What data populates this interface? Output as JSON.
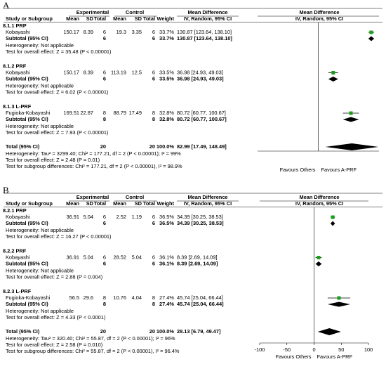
{
  "panels": [
    {
      "label": "A",
      "groups": [
        "Experimental",
        "Control",
        "Mean Difference",
        "Mean Difference"
      ],
      "columns": [
        "Study or Subgroup",
        "Mean",
        "SD",
        "Total",
        "Mean",
        "SD",
        "Total",
        "Weight",
        "IV, Random, 95% CI",
        "IV, Random, 95% CI"
      ],
      "subgroups": [
        {
          "title": "8.1.1 PRP",
          "study": {
            "name": "Kobayashi",
            "exp_mean": "150.17",
            "exp_sd": "8.39",
            "exp_total": "6",
            "ctl_mean": "19.3",
            "ctl_sd": "3.35",
            "ctl_total": "6",
            "weight": "33.7%",
            "ci_text": "130.87 [123.64, 138.10]",
            "md": 130.87,
            "ci": [
              123.64,
              138.1
            ]
          },
          "subtotal": {
            "name": "Subtotal (95% CI)",
            "exp_total": "6",
            "ctl_total": "6",
            "weight": "33.7%",
            "ci_text": "130.87 [123.64, 138.10]",
            "md": 130.87,
            "ci": [
              123.64,
              138.1
            ]
          },
          "heterogeneity": "Heterogeneity: Not applicable",
          "overall": "Test for overall effect: Z = 35.48 (P < 0.00001)"
        },
        {
          "title": "8.1.2 PRF",
          "study": {
            "name": "Kobayashi",
            "exp_mean": "150.17",
            "exp_sd": "8.39",
            "exp_total": "6",
            "ctl_mean": "113.19",
            "ctl_sd": "12.5",
            "ctl_total": "6",
            "weight": "33.5%",
            "ci_text": "36.98 [24.93, 49.03]",
            "md": 36.98,
            "ci": [
              24.93,
              49.03
            ]
          },
          "subtotal": {
            "name": "Subtotal (95% CI)",
            "exp_total": "6",
            "ctl_total": "6",
            "weight": "33.5%",
            "ci_text": "36.98 [24.93, 49.03]",
            "md": 36.98,
            "ci": [
              24.93,
              49.03
            ]
          },
          "heterogeneity": "Heterogeneity: Not applicable",
          "overall": "Test for overall effect: Z = 6.02 (P < 0.00001)"
        },
        {
          "title": "8.1.3 L-PRF",
          "study": {
            "name": "Fugioka-Kobayashi",
            "exp_mean": "169.51",
            "exp_sd": "22.87",
            "exp_total": "8",
            "ctl_mean": "88.79",
            "ctl_sd": "17.49",
            "ctl_total": "8",
            "weight": "32.8%",
            "ci_text": "80.72 [60.77, 100.67]",
            "md": 80.72,
            "ci": [
              60.77,
              100.67
            ]
          },
          "subtotal": {
            "name": "Subtotal (95% CI)",
            "exp_total": "8",
            "ctl_total": "8",
            "weight": "32.8%",
            "ci_text": "80.72 [60.77, 100.67]",
            "md": 80.72,
            "ci": [
              60.77,
              100.67
            ]
          },
          "heterogeneity": "Heterogeneity: Not applicable",
          "overall": "Test for overall effect: Z = 7.93 (P < 0.00001)"
        }
      ],
      "total": {
        "name": "Total (95% CI)",
        "exp_total": "20",
        "ctl_total": "20",
        "weight": "100.0%",
        "ci_text": "82.99 [17.49, 148.49]",
        "md": 82.99,
        "ci": [
          17.49,
          148.49
        ]
      },
      "footer": [
        "Heterogeneity: Tau² = 3299.40; Chi² = 177.21, df = 2 (P < 0.00001); I² = 99%",
        "Test for overall effect: Z = 2.48 (P = 0.01)",
        "Test for subgroup differences: Chi² = 177.21, df = 2 (P < 0.00001), I² = 98.9%"
      ],
      "xlim": [
        -150,
        150
      ],
      "favours": [
        "Favours Others",
        "Favours A-PRF"
      ]
    },
    {
      "label": "B",
      "groups": [
        "Experimental",
        "Control",
        "Mean Difference",
        "Mean Difference"
      ],
      "columns": [
        "Study or Subgroup",
        "Mean",
        "SD",
        "Total",
        "Mean",
        "SD",
        "Total",
        "Weight",
        "IV, Random, 95% CI",
        "IV, Random, 95% CI"
      ],
      "subgroups": [
        {
          "title": "8.2.1 PRP",
          "study": {
            "name": "Kobayashi",
            "exp_mean": "36.91",
            "exp_sd": "5.04",
            "exp_total": "6",
            "ctl_mean": "2.52",
            "ctl_sd": "1.19",
            "ctl_total": "6",
            "weight": "36.5%",
            "ci_text": "34.39 [30.25, 38.53]",
            "md": 34.39,
            "ci": [
              30.25,
              38.53
            ]
          },
          "subtotal": {
            "name": "Subtotal (95% CI)",
            "exp_total": "6",
            "ctl_total": "6",
            "weight": "36.5%",
            "ci_text": "34.39 [30.25, 38.53]",
            "md": 34.39,
            "ci": [
              30.25,
              38.53
            ]
          },
          "heterogeneity": "Heterogeneity: Not applicable",
          "overall": "Test for overall effect: Z = 16.27 (P < 0.00001)"
        },
        {
          "title": "8.2.2 PRF",
          "study": {
            "name": "Kobayashi",
            "exp_mean": "36.91",
            "exp_sd": "5.04",
            "exp_total": "6",
            "ctl_mean": "28.52",
            "ctl_sd": "5.04",
            "ctl_total": "6",
            "weight": "36.1%",
            "ci_text": "8.39 [2.69, 14.09]",
            "md": 8.39,
            "ci": [
              2.69,
              14.09
            ]
          },
          "subtotal": {
            "name": "Subtotal (95% CI)",
            "exp_total": "6",
            "ctl_total": "6",
            "weight": "36.1%",
            "ci_text": "8.39 [2.69, 14.09]",
            "md": 8.39,
            "ci": [
              2.69,
              14.09
            ]
          },
          "heterogeneity": "Heterogeneity: Not applicable",
          "overall": "Test for overall effect: Z = 2.88 (P = 0.004)"
        },
        {
          "title": "8.2.3 L-PRF",
          "study": {
            "name": "Fugioka-Kobayashi",
            "exp_mean": "56.5",
            "exp_sd": "29.6",
            "exp_total": "8",
            "ctl_mean": "10.76",
            "ctl_sd": "4.04",
            "ctl_total": "8",
            "weight": "27.4%",
            "ci_text": "45.74 [25.04, 66.44]",
            "md": 45.74,
            "ci": [
              25.04,
              66.44
            ]
          },
          "subtotal": {
            "name": "Subtotal (95% CI)",
            "exp_total": "8",
            "ctl_total": "8",
            "weight": "27.4%",
            "ci_text": "45.74 [25.04, 66.44]",
            "md": 45.74,
            "ci": [
              25.04,
              66.44
            ]
          },
          "heterogeneity": "Heterogeneity: Not applicable",
          "overall": "Test for overall effect: Z = 4.33 (P < 0.0001)"
        }
      ],
      "total": {
        "name": "Total (95% CI)",
        "exp_total": "20",
        "ctl_total": "20",
        "weight": "100.0%",
        "ci_text": "28.13 [6.79, 49.47]",
        "md": 28.13,
        "ci": [
          6.79,
          49.47
        ]
      },
      "footer": [
        "Heterogeneity: Tau² = 320.40; Chi² = 55.87, df = 2 (P < 0.00001); I² = 96%",
        "Test for overall effect: Z = 2.58 (P = 0.010)",
        "Test for subgroup differences: Chi² = 55.87, df = 2 (P < 0.00001), I² = 96.4%"
      ],
      "xlim": [
        -100,
        100
      ],
      "xticks": [
        -100,
        -50,
        0,
        50,
        100
      ],
      "favours": [
        "Favours Others",
        "Favours A-PRF"
      ]
    }
  ]
}
